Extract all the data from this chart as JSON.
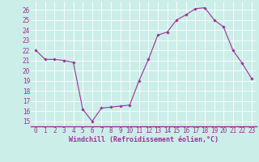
{
  "x": [
    0,
    1,
    2,
    3,
    4,
    5,
    6,
    7,
    8,
    9,
    10,
    11,
    12,
    13,
    14,
    15,
    16,
    17,
    18,
    19,
    20,
    21,
    22,
    23
  ],
  "y": [
    22.0,
    21.1,
    21.1,
    21.0,
    20.8,
    16.2,
    15.0,
    16.3,
    16.4,
    16.5,
    16.6,
    19.0,
    21.1,
    23.5,
    23.8,
    25.0,
    25.5,
    26.1,
    26.2,
    25.0,
    24.3,
    22.0,
    20.7,
    19.2
  ],
  "line_color": "#993399",
  "marker": "D",
  "marker_size": 1.8,
  "xlabel": "Windchill (Refroidissement éolien,°C)",
  "xlabel_fontsize": 6.0,
  "ylabel_ticks": [
    15,
    16,
    17,
    18,
    19,
    20,
    21,
    22,
    23,
    24,
    25,
    26
  ],
  "ylim": [
    14.5,
    26.8
  ],
  "xlim": [
    -0.5,
    23.5
  ],
  "bg_color": "#cceee8",
  "grid_color": "#ffffff",
  "tick_color": "#993399",
  "tick_fontsize": 5.5,
  "linewidth": 0.8,
  "spine_color": "#993399"
}
